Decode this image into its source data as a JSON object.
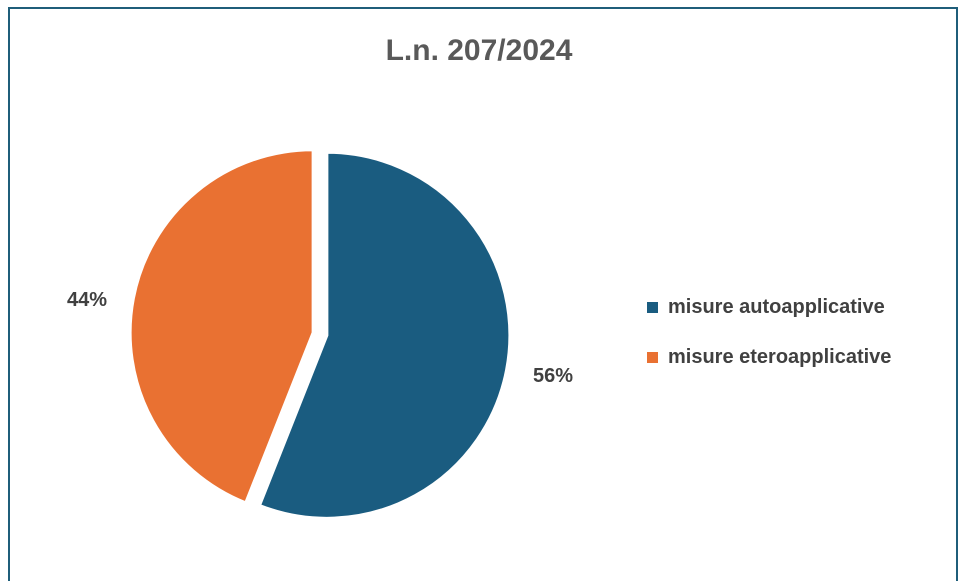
{
  "chart_data": {
    "type": "pie",
    "title": "L.n. 207/2024",
    "categories": [
      "misure autoapplicative",
      "misure eteroapplicative"
    ],
    "values": [
      56,
      44
    ],
    "labels": [
      "56%",
      "44%"
    ],
    "colors": [
      "#1a5c80",
      "#e97132"
    ],
    "legend": "right",
    "exploded": true
  }
}
